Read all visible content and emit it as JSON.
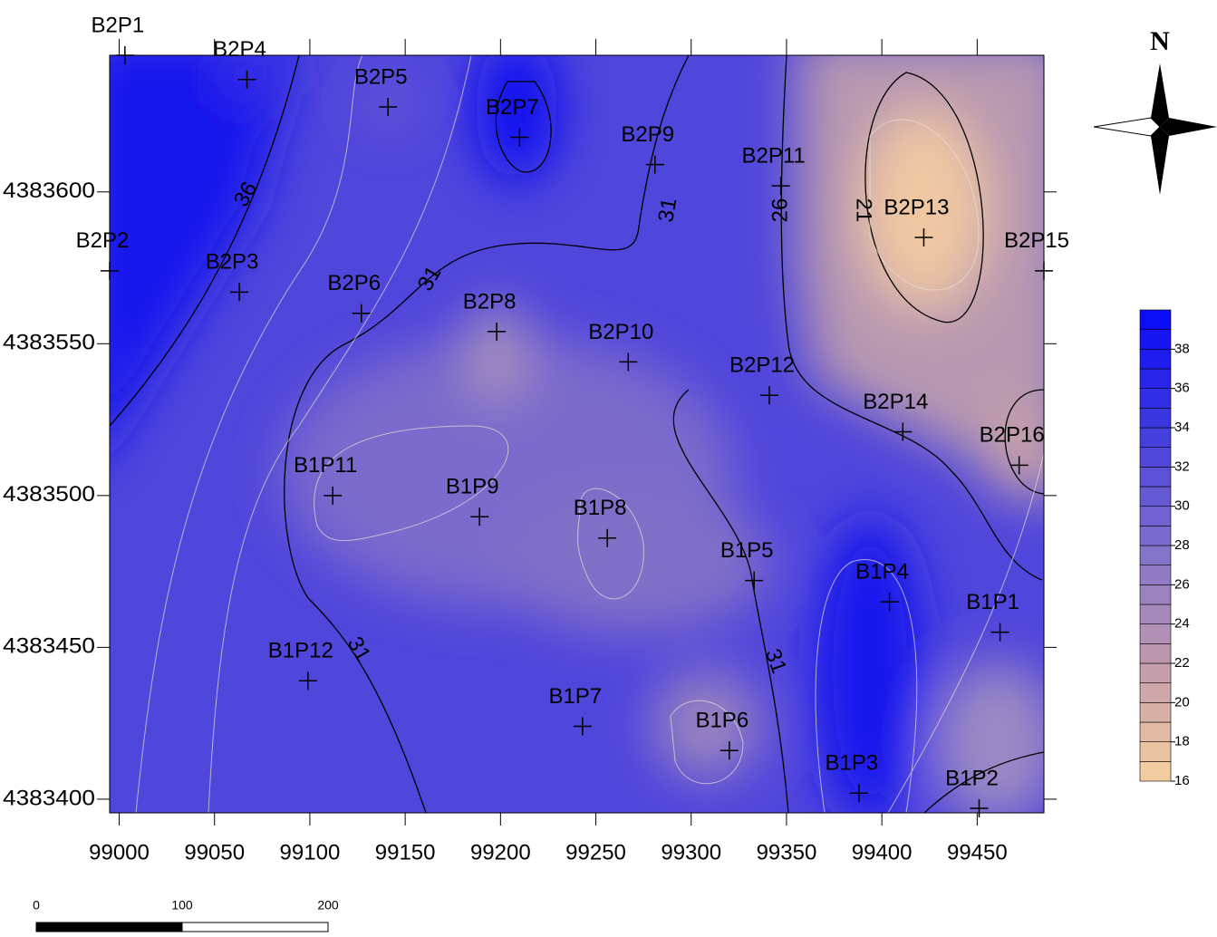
{
  "map": {
    "xticks": [
      99000,
      99050,
      99100,
      99150,
      99200,
      99250,
      99300,
      99350,
      99400,
      99450
    ],
    "yticks": [
      4383400,
      4383450,
      4383500,
      4383550,
      4383600
    ],
    "xlim": [
      98995,
      99485
    ],
    "ylim": [
      4383395.5,
      4383645
    ],
    "points": [
      {
        "name": "B2P1",
        "x": 99003,
        "y": 4383645
      },
      {
        "name": "B2P4",
        "x": 99067,
        "y": 4383637
      },
      {
        "name": "B2P5",
        "x": 99141,
        "y": 4383628
      },
      {
        "name": "B2P7",
        "x": 99210,
        "y": 4383618
      },
      {
        "name": "B2P9",
        "x": 99281,
        "y": 4383609
      },
      {
        "name": "B2P11",
        "x": 99347,
        "y": 4383602
      },
      {
        "name": "B2P13",
        "x": 99422,
        "y": 4383585
      },
      {
        "name": "B2P15",
        "x": 99485,
        "y": 4383574
      },
      {
        "name": "B2P2",
        "x": 98995,
        "y": 4383574
      },
      {
        "name": "B2P3",
        "x": 99063,
        "y": 4383567
      },
      {
        "name": "B2P6",
        "x": 99127,
        "y": 4383560
      },
      {
        "name": "B2P8",
        "x": 99198,
        "y": 4383554
      },
      {
        "name": "B2P10",
        "x": 99267,
        "y": 4383544
      },
      {
        "name": "B2P12",
        "x": 99341,
        "y": 4383533
      },
      {
        "name": "B2P14",
        "x": 99411,
        "y": 4383521
      },
      {
        "name": "B2P16",
        "x": 99472,
        "y": 4383510
      },
      {
        "name": "B1P11",
        "x": 99112,
        "y": 4383500
      },
      {
        "name": "B1P9",
        "x": 99189,
        "y": 4383493
      },
      {
        "name": "B1P8",
        "x": 99256,
        "y": 4383486
      },
      {
        "name": "B1P5",
        "x": 99333,
        "y": 4383472
      },
      {
        "name": "B1P4",
        "x": 99404,
        "y": 4383465
      },
      {
        "name": "B1P1",
        "x": 99462,
        "y": 4383455
      },
      {
        "name": "B1P12",
        "x": 99099,
        "y": 4383439
      },
      {
        "name": "B1P7",
        "x": 99243,
        "y": 4383424
      },
      {
        "name": "B1P6",
        "x": 99320,
        "y": 4383416
      },
      {
        "name": "B1P3",
        "x": 99388,
        "y": 4383402
      },
      {
        "name": "B1P2",
        "x": 99451,
        "y": 4383397
      }
    ],
    "contour_labels": [
      36,
      31,
      31,
      26,
      21,
      31,
      31
    ],
    "colorbar": {
      "range": [
        16,
        40
      ],
      "ticks": [
        16,
        18,
        20,
        22,
        24,
        26,
        28,
        30,
        32,
        34,
        36,
        38
      ],
      "colors": [
        "#f8d0a0",
        "#c09aac",
        "#8070cc",
        "#3e3ade",
        "#0808f8"
      ]
    },
    "scale_bar": {
      "ticks": [
        0,
        100,
        200
      ]
    },
    "north": "N"
  }
}
